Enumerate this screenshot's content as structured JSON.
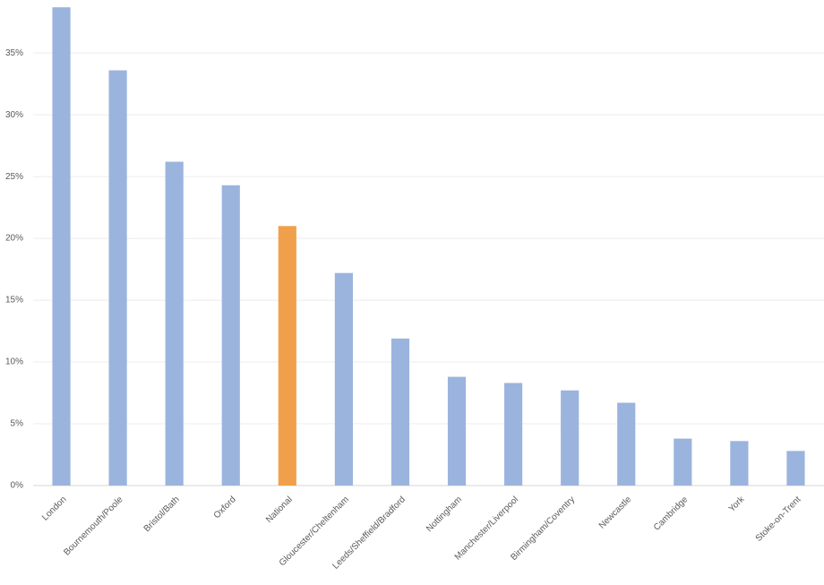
{
  "chart_data": {
    "type": "bar",
    "categories": [
      "London",
      "Bournemouth/Poole",
      "Bristol/Bath",
      "Oxford",
      "National",
      "Gloucester/Cheltenham",
      "Leeds/Sheffield/Bradford",
      "Nottingham",
      "Manchester/Liverpool",
      "Birmingham/Coventry",
      "Newcastle",
      "Cambridge",
      "York",
      "Stoke-on-Trent"
    ],
    "values": [
      38.7,
      33.6,
      26.2,
      24.3,
      21.0,
      17.2,
      11.9,
      8.8,
      8.3,
      7.7,
      6.7,
      3.8,
      3.6,
      2.8
    ],
    "colors": [
      "#9bb4de",
      "#9bb4de",
      "#9bb4de",
      "#9bb4de",
      "#f0a04b",
      "#9bb4de",
      "#9bb4de",
      "#9bb4de",
      "#9bb4de",
      "#9bb4de",
      "#9bb4de",
      "#9bb4de",
      "#9bb4de",
      "#9bb4de"
    ],
    "ylim": [
      0,
      39
    ],
    "yticks": [
      {
        "value": 0,
        "label": "0%"
      },
      {
        "value": 5,
        "label": "5%"
      },
      {
        "value": 10,
        "label": "10%"
      },
      {
        "value": 15,
        "label": "15%"
      },
      {
        "value": 20,
        "label": "20%"
      },
      {
        "value": 25,
        "label": "25%"
      },
      {
        "value": 30,
        "label": "30%"
      },
      {
        "value": 35,
        "label": "35%"
      }
    ],
    "grid": true
  }
}
